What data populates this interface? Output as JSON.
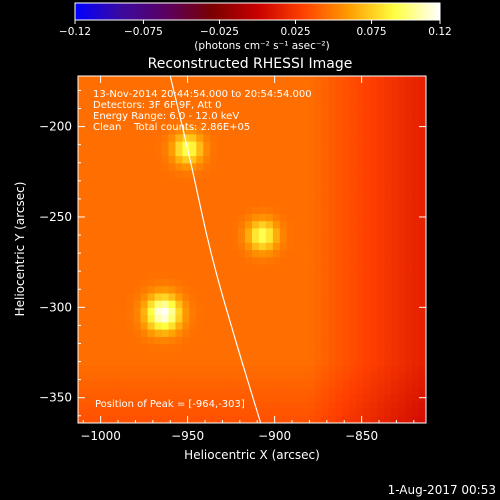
{
  "chart_data": {
    "type": "heatmap",
    "title": "Reconstructed RHESSI Image",
    "xlabel": "Heliocentric X (arcsec)",
    "ylabel": "Heliocentric Y (arcsec)",
    "xlim": [
      -1013,
      -813
    ],
    "ylim": [
      -364,
      -172
    ],
    "xticks": [
      -1000,
      -950,
      -900,
      -850
    ],
    "yticks": [
      -200,
      -250,
      -300,
      -350
    ],
    "xtick_labels": [
      "−1000",
      "−950",
      "−900",
      "−850"
    ],
    "ytick_labels": [
      "−200",
      "−250",
      "−300",
      "−350"
    ],
    "colorbar": {
      "vmin": -0.12,
      "vmax": 0.12,
      "ticks": [
        -0.12,
        -0.075,
        -0.025,
        0.025,
        0.075,
        0.12
      ],
      "tick_labels": [
        "−0.12",
        "−0.075",
        "−0.025",
        "0.025",
        "0.075",
        "0.12"
      ],
      "units": "(photons cm⁻² s⁻¹ asec⁻²)",
      "colormap": [
        "#0000ff",
        "#3a0aa0",
        "#5a0060",
        "#7a0000",
        "#c80000",
        "#ff4000",
        "#ff9c00",
        "#ffff40",
        "#ffffff"
      ]
    },
    "background_level": 0.045,
    "sources": [
      {
        "x": -964,
        "y": -303,
        "peak": 0.12,
        "sigma": 7.0
      },
      {
        "x": -950,
        "y": -212,
        "peak": 0.095,
        "sigma": 6.0
      },
      {
        "x": -907,
        "y": -260,
        "peak": 0.095,
        "sigma": 6.0
      }
    ],
    "annotations": {
      "line1": "13-Nov-2014 20:44:54.000 to 20:54:54.000",
      "line2": "Detectors: 3F 6F 9F, Att 0",
      "line3": "Energy Range: 6.0 - 12.0 keV",
      "line4": "Clean    Total counts: 2.86E+05",
      "peak": "Position of Peak = [-964,-303]"
    },
    "limb_curve": [
      [
        -960,
        -172
      ],
      [
        -948,
        -220
      ],
      [
        -937,
        -270
      ],
      [
        -922,
        -320
      ],
      [
        -908,
        -364
      ]
    ],
    "footer": "1-Aug-2017 00:53"
  }
}
